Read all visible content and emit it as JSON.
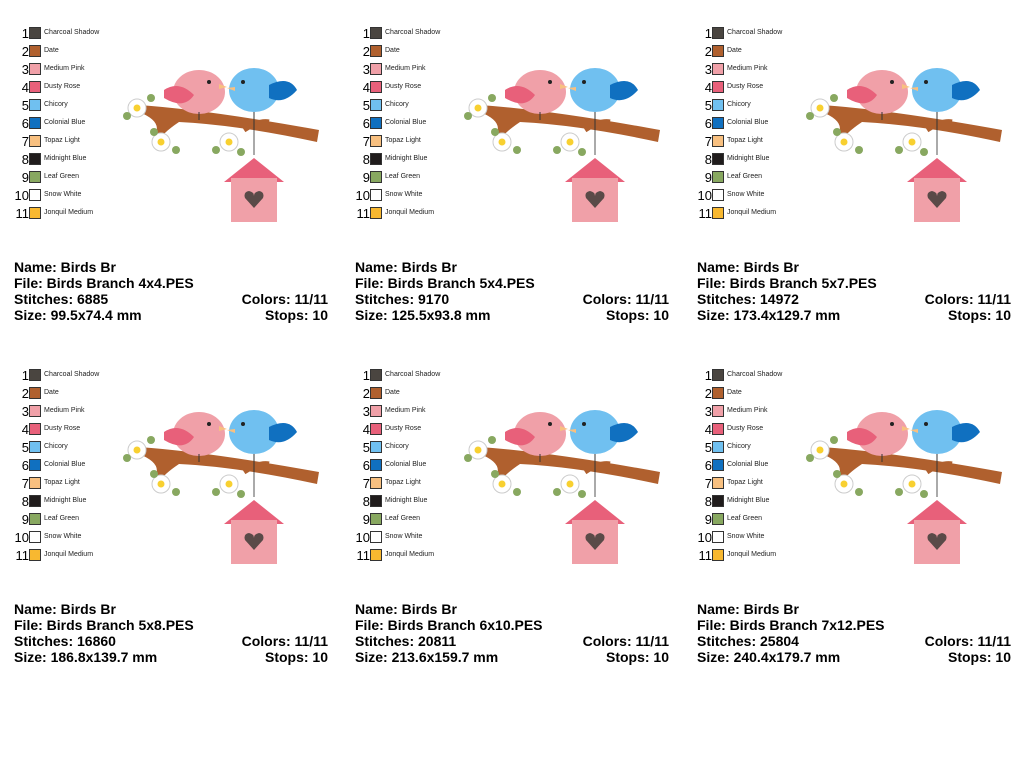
{
  "legend": [
    {
      "num": "1",
      "name": "Charcoal Shadow",
      "color": "#4a4540"
    },
    {
      "num": "2",
      "name": "Date",
      "color": "#b0602e"
    },
    {
      "num": "3",
      "name": "Medium Pink",
      "color": "#f0a0a8"
    },
    {
      "num": "4",
      "name": "Dusty Rose",
      "color": "#e8607a"
    },
    {
      "num": "5",
      "name": "Chicory",
      "color": "#70c0f0"
    },
    {
      "num": "6",
      "name": "Colonial Blue",
      "color": "#1070c0"
    },
    {
      "num": "7",
      "name": "Topaz Light",
      "color": "#f8c080"
    },
    {
      "num": "8",
      "name": "Midnight Blue",
      "color": "#201c1c"
    },
    {
      "num": "9",
      "name": "Leaf Green",
      "color": "#88a860"
    },
    {
      "num": "10",
      "name": "Snow White",
      "color": "#ffffff"
    },
    {
      "num": "11",
      "name": "Jonquil Medium",
      "color": "#f8b830"
    }
  ],
  "designs": [
    {
      "name": "Name: Birds Br",
      "file": "File: Birds Branch 4x4.PES",
      "stitches": "Stitches: 6885",
      "colors": "Colors: 11/11",
      "size": "Size: 99.5x74.4 mm",
      "stops": "Stops: 10"
    },
    {
      "name": "Name: Birds Br",
      "file": "File: Birds Branch 5x4.PES",
      "stitches": "Stitches: 9170",
      "colors": "Colors: 11/11",
      "size": "Size: 125.5x93.8 mm",
      "stops": "Stops: 10"
    },
    {
      "name": "Name: Birds Br",
      "file": "File: Birds Branch 5x7.PES",
      "stitches": "Stitches: 14972",
      "colors": "Colors: 11/11",
      "size": "Size: 173.4x129.7 mm",
      "stops": "Stops: 10"
    },
    {
      "name": "Name: Birds Br",
      "file": "File: Birds Branch 5x8.PES",
      "stitches": "Stitches: 16860",
      "colors": "Colors: 11/11",
      "size": "Size: 186.8x139.7 mm",
      "stops": "Stops: 10"
    },
    {
      "name": "Name: Birds Br",
      "file": "File: Birds Branch 6x10.PES",
      "stitches": "Stitches: 20811",
      "colors": "Colors: 11/11",
      "size": "Size: 213.6x159.7 mm",
      "stops": "Stops: 10"
    },
    {
      "name": "Name: Birds Br",
      "file": "File: Birds Branch 7x12.PES",
      "stitches": "Stitches: 25804",
      "colors": "Colors: 11/11",
      "size": "Size: 240.4x179.7 mm",
      "stops": "Stops: 10"
    }
  ]
}
